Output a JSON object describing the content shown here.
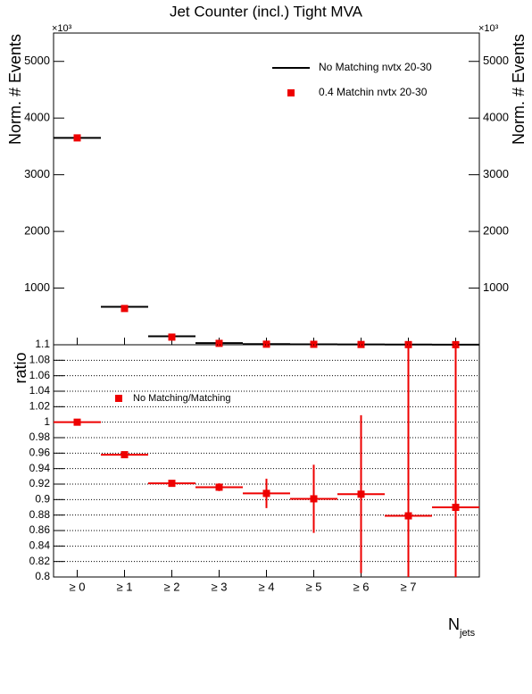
{
  "chart_data": [
    {
      "type": "step",
      "title": "Jet Counter (incl.) Tight MVA",
      "y_label": "Norm. # Events",
      "y_multiplier": "×10³",
      "categories": [
        "≥ 0",
        "≥ 1",
        "≥ 2",
        "≥ 3",
        "≥ 4",
        "≥ 5",
        "≥ 6",
        "≥ 7",
        null
      ],
      "series": [
        {
          "name": "No Matching nvtx 20-30",
          "color": "#000000",
          "style": "line",
          "values": [
            3650,
            670,
            150,
            30,
            12,
            8,
            5,
            3,
            2
          ]
        },
        {
          "name": "0.4 Matchin nvtx 20-30",
          "color": "#ee0000",
          "style": "marker",
          "values": [
            3650,
            640,
            135,
            25,
            10,
            8,
            5,
            3,
            2
          ]
        }
      ],
      "ylim": [
        0,
        5500
      ],
      "yticks": [
        1000,
        2000,
        3000,
        4000,
        5000
      ]
    },
    {
      "type": "errorbar",
      "y_label": "ratio",
      "x_label": "N",
      "x_label_sub": "jets",
      "categories": [
        "≥ 0",
        "≥ 1",
        "≥ 2",
        "≥ 3",
        "≥ 4",
        "≥ 5",
        "≥ 6",
        "≥ 7",
        null
      ],
      "series": [
        {
          "name": "No Matching/Matching",
          "color": "#ee0000",
          "values": [
            1.0,
            0.958,
            0.921,
            0.916,
            0.908,
            0.901,
            0.907,
            0.879,
            0.89
          ],
          "errors": [
            0.001,
            0.002,
            0.002,
            0.005,
            0.019,
            0.044,
            0.102,
            0.25,
            0.25
          ]
        }
      ],
      "ylim": [
        0.8,
        1.1
      ],
      "yticks": [
        0.8,
        0.82,
        0.84,
        0.86,
        0.88,
        0.9,
        0.92,
        0.94,
        0.96,
        0.98,
        1,
        1.02,
        1.04,
        1.06,
        1.08,
        1.1
      ],
      "grid": true
    }
  ]
}
